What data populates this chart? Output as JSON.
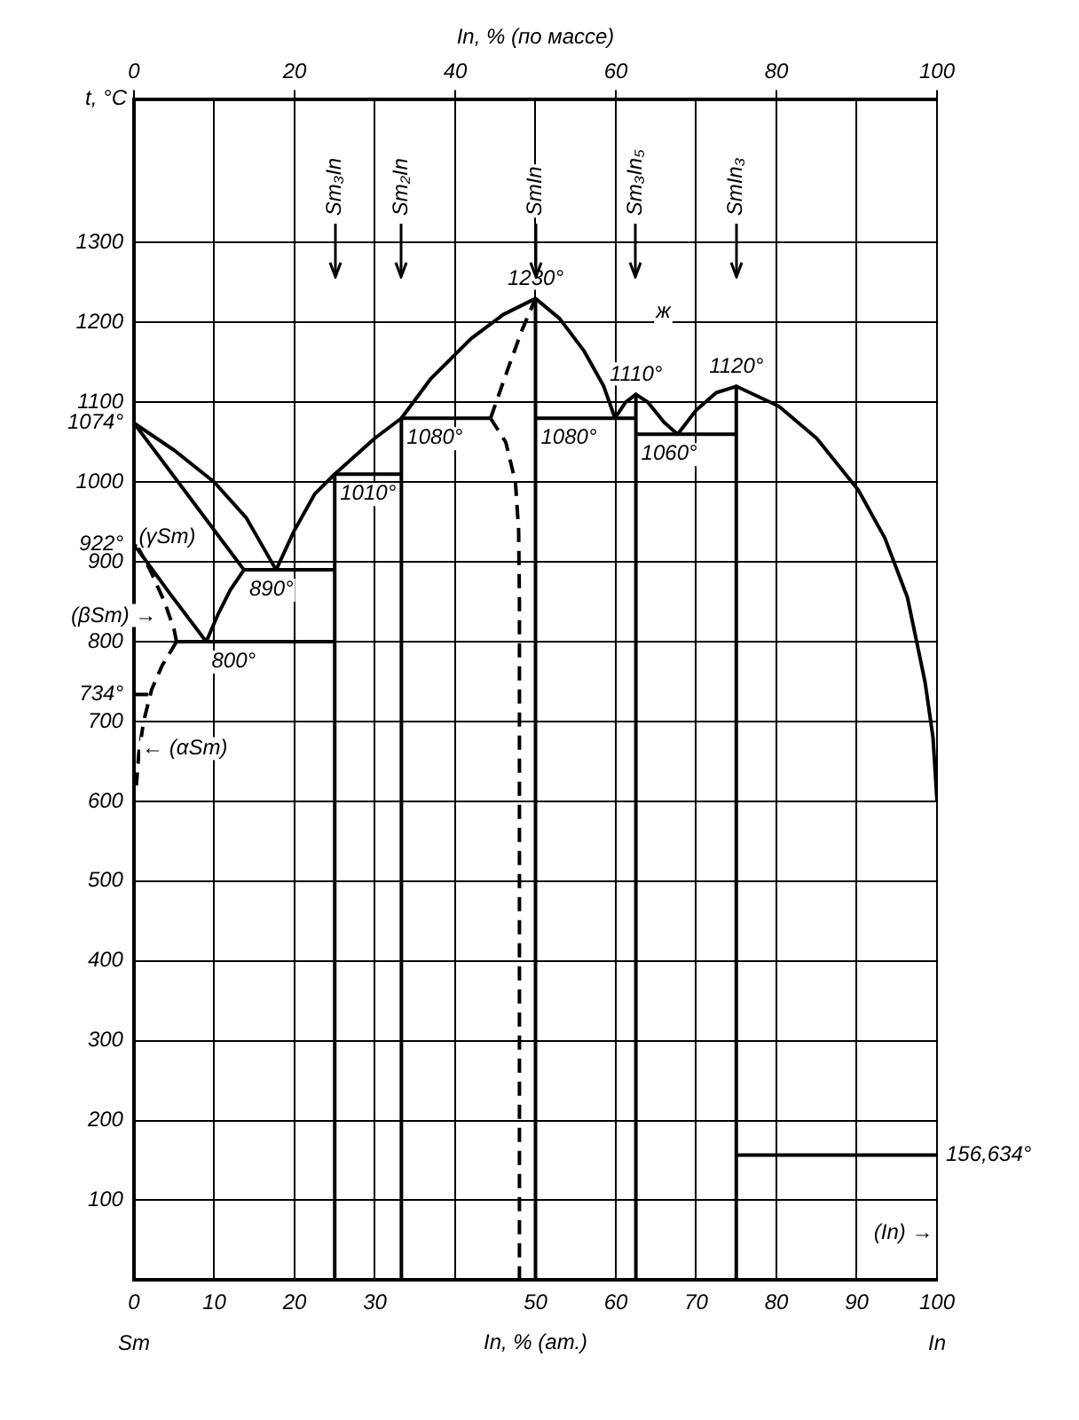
{
  "chart_data": {
    "type": "line",
    "xlabel": "In, % (ат.)",
    "ylabel": "t, °C",
    "x2label": "In, % (по массе)",
    "xlim": [
      0,
      100
    ],
    "ylim": [
      0,
      1480
    ],
    "x2lim": [
      0,
      100
    ],
    "xticks": [
      0,
      10,
      20,
      30,
      {
        "value": 40,
        "label": null
      },
      50,
      60,
      70,
      80,
      90,
      100
    ],
    "x2ticks": [
      0,
      20,
      40,
      60,
      80,
      100
    ],
    "yticks": [
      100,
      200,
      300,
      400,
      500,
      600,
      700,
      {
        "value": 734,
        "label": "734°"
      },
      800,
      900,
      {
        "value": 922,
        "label": "922°"
      },
      1000,
      {
        "value": 1074,
        "label": "1074°"
      },
      1100,
      1200,
      1300
    ],
    "grid": true,
    "legend": false,
    "marker": "none",
    "line_style": "solid",
    "series": [
      {
        "color": "#000000",
        "x": [
          0,
          5,
          10,
          14,
          17.7
        ],
        "values": [
          1074,
          1040,
          1000,
          955,
          890
        ]
      },
      {
        "color": "#000000",
        "x": [
          0,
          13.7
        ],
        "values": [
          1074,
          890
        ]
      },
      {
        "color": "#000000",
        "x": [
          13.7,
          25
        ],
        "values": [
          890,
          890
        ]
      },
      {
        "color": "#000000",
        "x": [
          17.7,
          20,
          22.5,
          25,
          30,
          33.3,
          37,
          42,
          46,
          50
        ],
        "values": [
          890,
          940,
          985,
          1010,
          1055,
          1080,
          1130,
          1180,
          1210,
          1230
        ]
      },
      {
        "color": "#000000",
        "x": [
          25,
          33.3
        ],
        "values": [
          1010,
          1010
        ]
      },
      {
        "color": "#000000",
        "x": [
          25,
          25
        ],
        "values": [
          1010,
          0
        ]
      },
      {
        "color": "#000000",
        "x": [
          33.3,
          33.3
        ],
        "values": [
          1080,
          0
        ]
      },
      {
        "color": "#000000",
        "x": [
          33.3,
          44.4
        ],
        "values": [
          1080,
          1080
        ]
      },
      {
        "color": "#000000",
        "line_style": "dashed",
        "x": [
          44.4,
          46.5,
          48.3,
          50
        ],
        "values": [
          1080,
          1140,
          1190,
          1230
        ]
      },
      {
        "color": "#000000",
        "line_style": "dashed",
        "x": [
          44.4,
          46.3,
          47.5,
          47.9,
          48,
          48
        ],
        "values": [
          1080,
          1050,
          1000,
          940,
          850,
          0
        ]
      },
      {
        "color": "#000000",
        "x": [
          50,
          50
        ],
        "values": [
          1230,
          0
        ]
      },
      {
        "color": "#000000",
        "x": [
          50,
          53,
          56,
          58.5,
          59.9
        ],
        "values": [
          1230,
          1205,
          1165,
          1120,
          1080
        ]
      },
      {
        "color": "#000000",
        "x": [
          50,
          62.5
        ],
        "values": [
          1080,
          1080
        ]
      },
      {
        "color": "#000000",
        "x": [
          59.9,
          61.2,
          62.5,
          64,
          66,
          67.7
        ],
        "values": [
          1080,
          1100,
          1110,
          1100,
          1075,
          1060
        ]
      },
      {
        "color": "#000000",
        "x": [
          62.5,
          75
        ],
        "values": [
          1060,
          1060
        ]
      },
      {
        "color": "#000000",
        "x": [
          67.7,
          70,
          72.5,
          75,
          80.3,
          85,
          90.2,
          93.5,
          96.3,
          98.5,
          99.5,
          100
        ],
        "values": [
          1060,
          1090,
          1112,
          1120,
          1095,
          1055,
          990,
          930,
          856,
          750,
          680,
          600
        ]
      },
      {
        "color": "#000000",
        "x": [
          62.5,
          62.5
        ],
        "values": [
          1110,
          0
        ]
      },
      {
        "color": "#000000",
        "x": [
          75,
          75
        ],
        "values": [
          1120,
          0
        ]
      },
      {
        "color": "#000000",
        "x": [
          75,
          100
        ],
        "values": [
          156.634,
          156.634
        ]
      },
      {
        "color": "#000000",
        "x": [
          0,
          4.5,
          9
        ],
        "values": [
          922,
          860,
          800
        ]
      },
      {
        "color": "#000000",
        "x": [
          9,
          10.5,
          12,
          13.7
        ],
        "values": [
          800,
          835,
          865,
          890
        ]
      },
      {
        "color": "#000000",
        "line_style": "dashed",
        "x": [
          0.3,
          2,
          3.8,
          5,
          5.3
        ],
        "values": [
          922,
          890,
          850,
          815,
          800
        ]
      },
      {
        "color": "#000000",
        "x": [
          5.3,
          25
        ],
        "values": [
          800,
          800
        ]
      },
      {
        "color": "#000000",
        "line_style": "dashed",
        "x": [
          5.3,
          3.5,
          2.2,
          1.2,
          0.6,
          0.3
        ],
        "values": [
          800,
          770,
          740,
          700,
          660,
          620
        ]
      },
      {
        "color": "#000000",
        "line_style": "dashed",
        "x": [
          0,
          2.2
        ],
        "values": [
          734,
          734
        ]
      }
    ],
    "annotations": [
      {
        "text": "Sm₃In",
        "x": 25
      },
      {
        "text": "Sm₂In",
        "x": 33.3
      },
      {
        "text": "SmIn",
        "x": 50
      },
      {
        "text": "Sm₃In₅",
        "x": 62.5
      },
      {
        "text": "SmIn₃",
        "x": 75
      },
      {
        "text": "1230°",
        "x": 50,
        "y": 1230
      },
      {
        "text": "1110°",
        "x": 62.5,
        "y": 1110
      },
      {
        "text": "1120°",
        "x": 75,
        "y": 1120
      },
      {
        "text": "1080°",
        "x": 33.3,
        "y": 1080
      },
      {
        "text": "1080°",
        "x": 50,
        "y": 1080
      },
      {
        "text": "1060°",
        "x": 62.5,
        "y": 1060
      },
      {
        "text": "1010°",
        "x": 25,
        "y": 1010
      },
      {
        "text": "890°",
        "x": 13.7,
        "y": 890
      },
      {
        "text": "800°",
        "x": 9,
        "y": 800
      },
      {
        "text": "156,634°",
        "x": 100,
        "y": 156.634
      },
      "(γSm)",
      "(βSm) →",
      "← (αSm)",
      "ж",
      "(In) →",
      "Sm",
      "In"
    ]
  }
}
